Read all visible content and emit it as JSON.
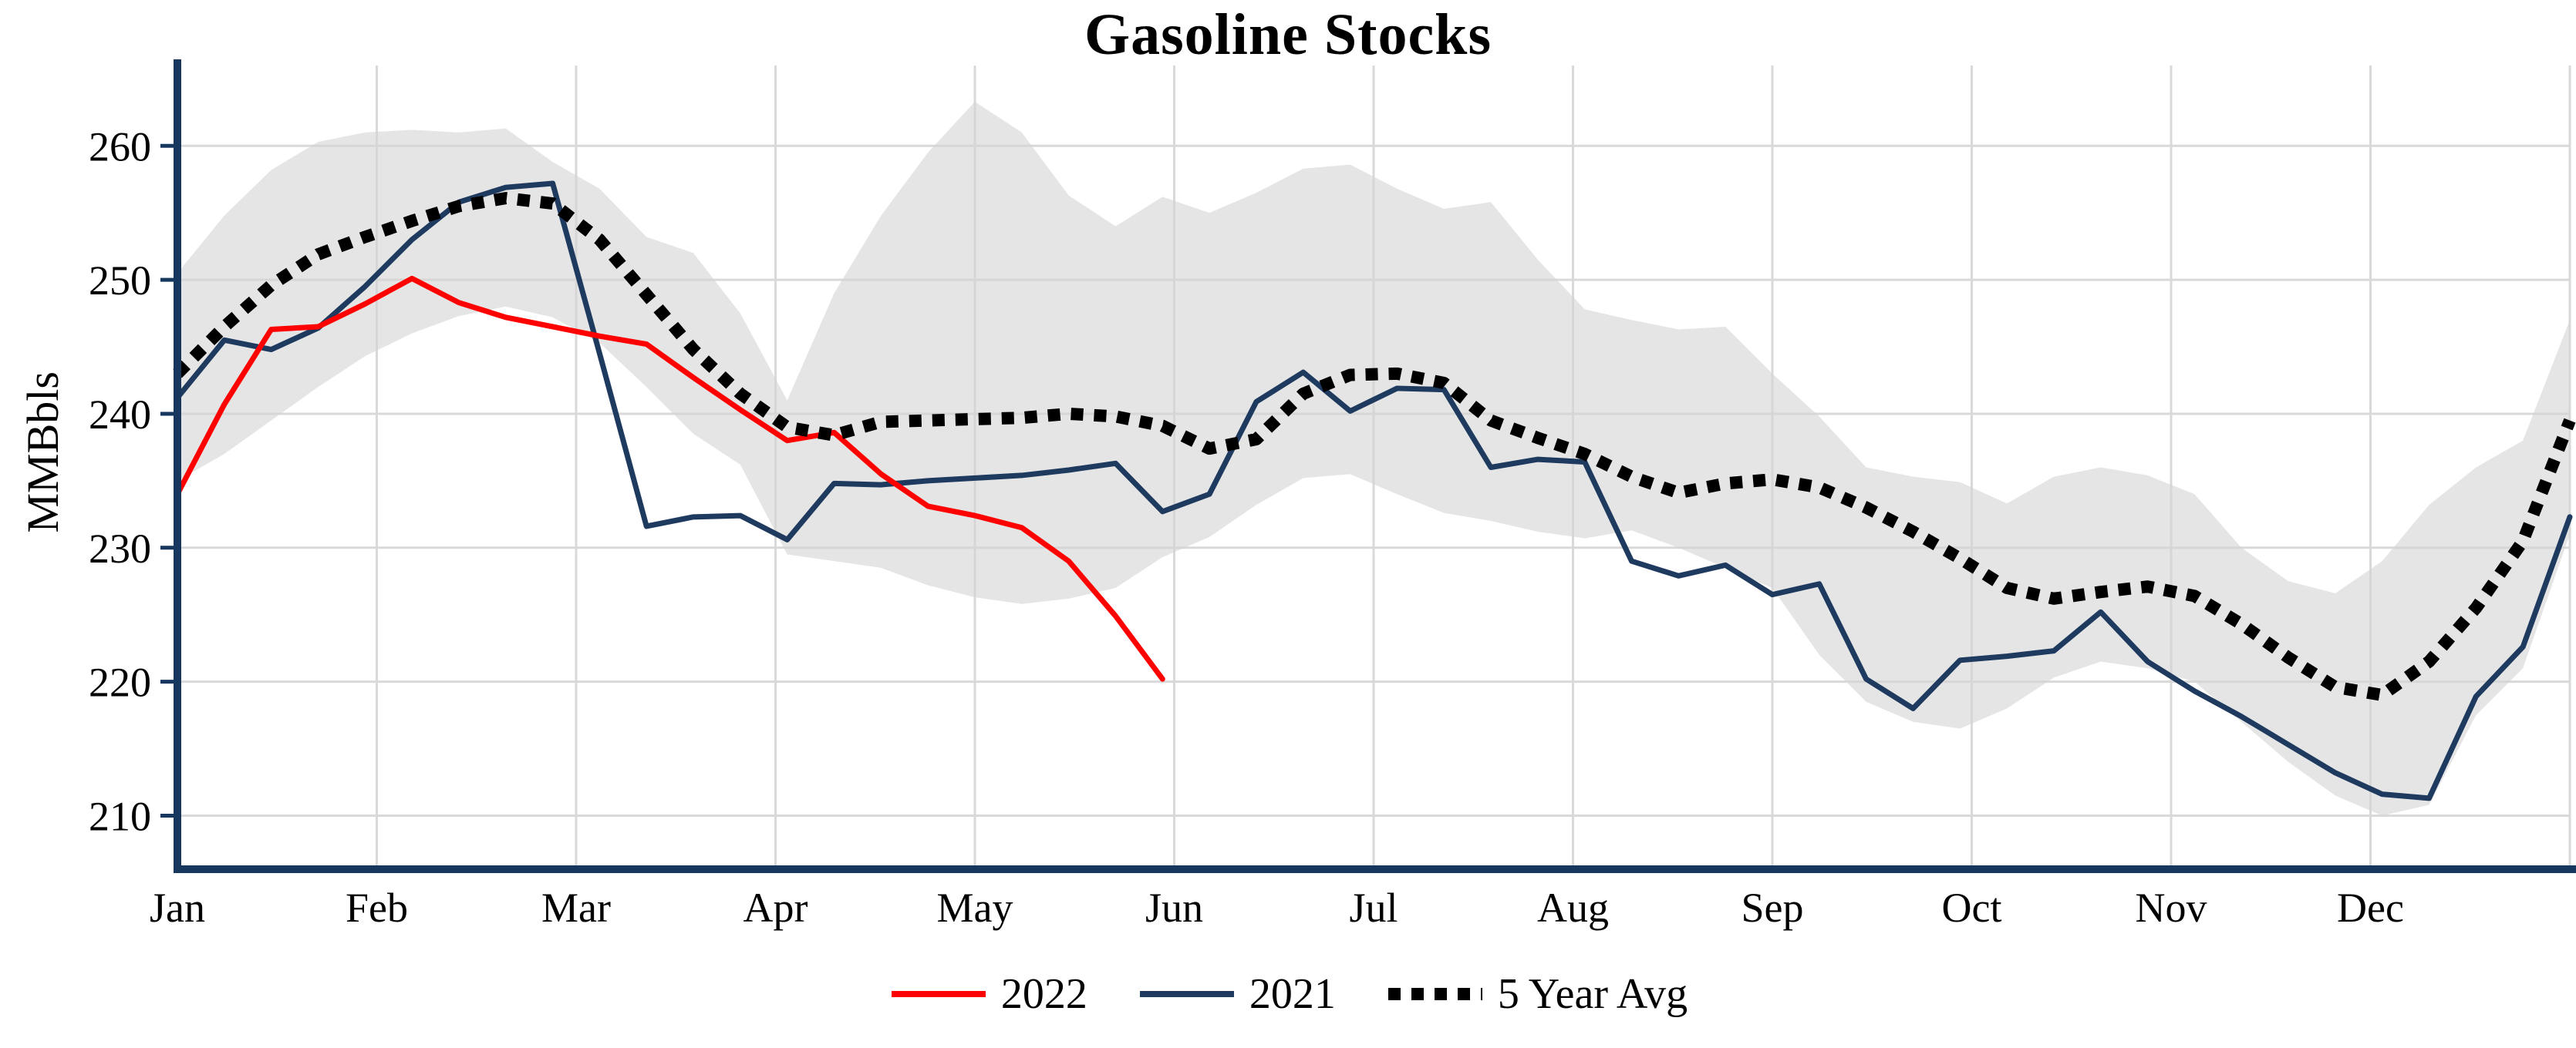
{
  "page": {
    "background": "#ffffff"
  },
  "chart_data": {
    "type": "line",
    "title": "Gasoline Stocks",
    "axes": {
      "y_label": "MMBbls",
      "y_ticks": [
        210,
        220,
        230,
        240,
        250,
        260
      ],
      "ylim": [
        206,
        266
      ],
      "x_tick_labels": [
        "Jan",
        "Feb",
        "Mar",
        "Apr",
        "May",
        "Jun",
        "Jul",
        "Aug",
        "Sep",
        "Oct",
        "Nov",
        "Dec"
      ],
      "grid": true
    },
    "x_unit": "week",
    "x_range": [
      1,
      52
    ],
    "colors": {
      "grid": "#d9d9d9",
      "axis": "#17375e",
      "band": "#d4d4d4",
      "text": "#000000"
    },
    "band": {
      "x_start": 1,
      "upper": [
        250.5,
        254.8,
        258.2,
        260.3,
        261.0,
        261.2,
        261.0,
        261.3,
        258.8,
        256.8,
        253.2,
        252.0,
        247.5,
        241.0,
        249.0,
        254.8,
        259.5,
        263.3,
        261.0,
        256.3,
        254.0,
        256.2,
        255.0,
        256.5,
        258.3,
        258.6,
        256.8,
        255.3,
        255.8,
        251.5,
        247.8,
        247.0,
        246.3,
        246.5,
        243.0,
        239.8,
        236.0,
        235.3,
        234.9,
        233.3,
        235.3,
        236.0,
        235.4,
        234.0,
        230.0,
        227.5,
        226.6,
        229.0,
        233.2,
        236.0,
        238.0,
        247.0
      ],
      "lower": [
        235.0,
        237.0,
        239.5,
        242.0,
        244.3,
        246.0,
        247.3,
        248.0,
        247.2,
        245.3,
        242.0,
        238.5,
        236.2,
        229.5,
        229.0,
        228.5,
        227.2,
        226.3,
        225.8,
        226.2,
        227.0,
        229.3,
        230.8,
        233.2,
        235.2,
        235.5,
        234.0,
        232.6,
        232.0,
        231.2,
        230.7,
        231.3,
        230.0,
        228.5,
        227.0,
        222.0,
        218.5,
        217.0,
        216.5,
        218.0,
        220.3,
        221.5,
        221.0,
        220.0,
        217.0,
        214.0,
        211.5,
        210.0,
        210.8,
        217.5,
        221.0,
        231.0
      ]
    },
    "series": [
      {
        "name": "2022",
        "color": "#ff0000",
        "style": "solid",
        "width": 7,
        "x_start": 1,
        "values": [
          234.0,
          240.7,
          246.3,
          246.5,
          248.2,
          250.1,
          248.3,
          247.2,
          246.5,
          245.8,
          245.2,
          242.7,
          240.3,
          238.0,
          238.6,
          235.5,
          233.1,
          232.4,
          231.5,
          229.0,
          224.9,
          220.2
        ]
      },
      {
        "name": "2021",
        "color": "#1e3a5f",
        "style": "solid",
        "width": 7,
        "x_start": 1,
        "values": [
          241.2,
          245.5,
          244.8,
          246.4,
          249.5,
          253.0,
          255.8,
          256.9,
          257.2,
          244.5,
          231.6,
          232.3,
          232.4,
          230.6,
          234.8,
          234.7,
          235.0,
          235.2,
          235.4,
          235.8,
          236.3,
          232.7,
          234.0,
          240.9,
          243.1,
          240.2,
          241.9,
          241.8,
          236.0,
          236.6,
          236.4,
          229.0,
          227.9,
          228.7,
          226.5,
          227.3,
          220.2,
          218.0,
          221.6,
          221.9,
          222.3,
          225.2,
          221.5,
          219.3,
          217.4,
          215.3,
          213.2,
          211.6,
          211.3,
          218.9,
          222.6,
          232.3
        ]
      },
      {
        "name": "5 Year Avg",
        "color": "#000000",
        "style": "dotted",
        "width": 16,
        "dash": "16 14",
        "x_start": 1,
        "values": [
          243.0,
          246.5,
          249.6,
          251.9,
          253.2,
          254.4,
          255.5,
          256.1,
          255.7,
          253.0,
          248.9,
          244.8,
          241.5,
          239.0,
          238.4,
          239.4,
          239.5,
          239.6,
          239.7,
          240.0,
          239.8,
          239.1,
          237.4,
          238.1,
          241.5,
          242.9,
          243.0,
          242.3,
          239.5,
          238.2,
          237.0,
          235.3,
          234.1,
          234.8,
          235.1,
          234.5,
          233.0,
          231.2,
          229.2,
          227.0,
          226.2,
          226.7,
          227.1,
          226.4,
          224.3,
          221.8,
          219.6,
          219.0,
          221.5,
          225.5,
          230.5,
          239.5
        ]
      }
    ],
    "legend_position": "bottom-center"
  }
}
